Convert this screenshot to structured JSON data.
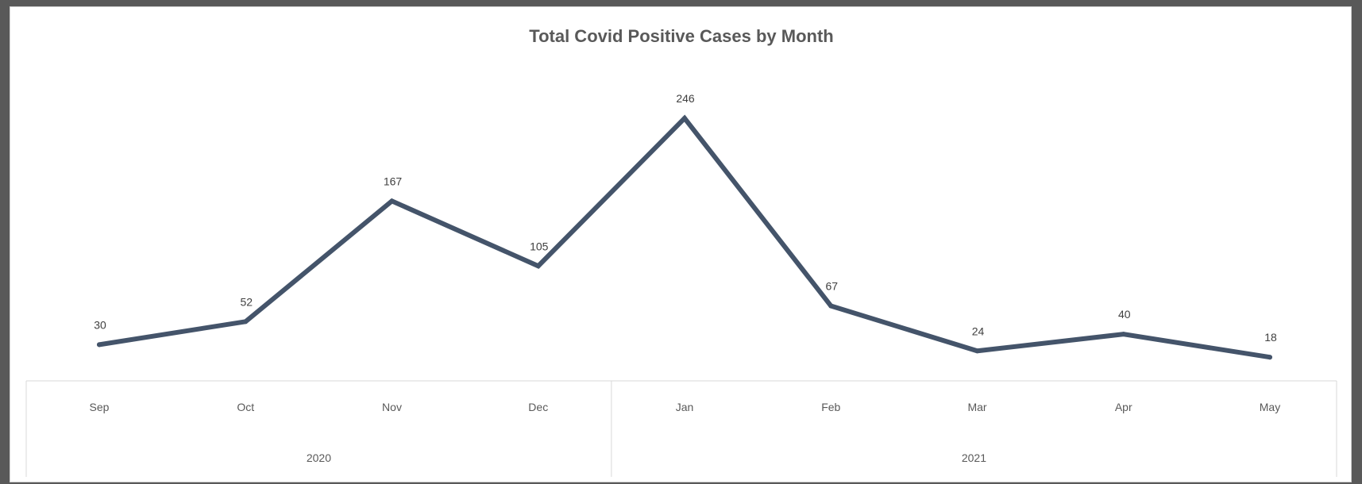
{
  "chart_data": {
    "type": "line",
    "title": "Total Covid Positive Cases by Month",
    "categories": [
      "Sep",
      "Oct",
      "Nov",
      "Dec",
      "Jan",
      "Feb",
      "Mar",
      "Apr",
      "May"
    ],
    "groups": [
      {
        "label": "2020",
        "categories": [
          "Sep",
          "Oct",
          "Nov",
          "Dec"
        ]
      },
      {
        "label": "2021",
        "categories": [
          "Jan",
          "Feb",
          "Mar",
          "Apr",
          "May"
        ]
      }
    ],
    "series": [
      {
        "values": [
          30,
          52,
          167,
          105,
          246,
          67,
          24,
          40,
          18
        ]
      }
    ],
    "data_labels": [
      "30",
      "52",
      "167",
      "105",
      "246",
      "67",
      "24",
      "40",
      "18"
    ],
    "ylim": [
      0,
      260
    ],
    "grid": false,
    "line_color": "#44546a",
    "xlabel": "",
    "ylabel": ""
  }
}
